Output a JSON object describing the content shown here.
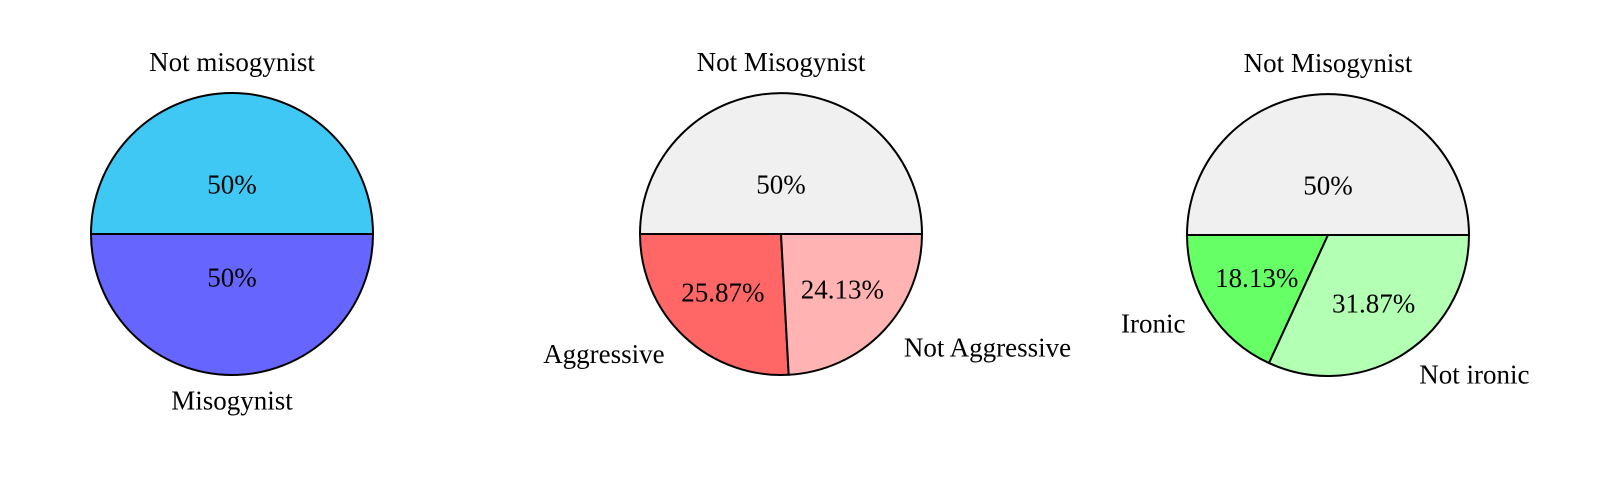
{
  "chart_data": [
    {
      "type": "pie",
      "categories": [
        "Not misogynist",
        "Misogynist"
      ],
      "values": [
        50,
        50
      ],
      "value_labels": [
        "50%",
        "50%"
      ],
      "colors": [
        "#40c8f4",
        "#6666ff"
      ]
    },
    {
      "type": "pie",
      "categories": [
        "Not Misogynist",
        "Aggressive",
        "Not Aggressive"
      ],
      "values": [
        50,
        25.87,
        24.13
      ],
      "value_labels": [
        "50%",
        "25.87%",
        "24.13%"
      ],
      "colors": [
        "#f0f0f0",
        "#ff6666",
        "#ffb3b3"
      ]
    },
    {
      "type": "pie",
      "categories": [
        "Not Misogynist",
        "Ironic",
        "Not ironic"
      ],
      "values": [
        50,
        18.13,
        31.87
      ],
      "value_labels": [
        "50%",
        "18.13%",
        "31.87%"
      ],
      "colors": [
        "#f0f0f0",
        "#66ff66",
        "#b3ffb3"
      ]
    }
  ]
}
